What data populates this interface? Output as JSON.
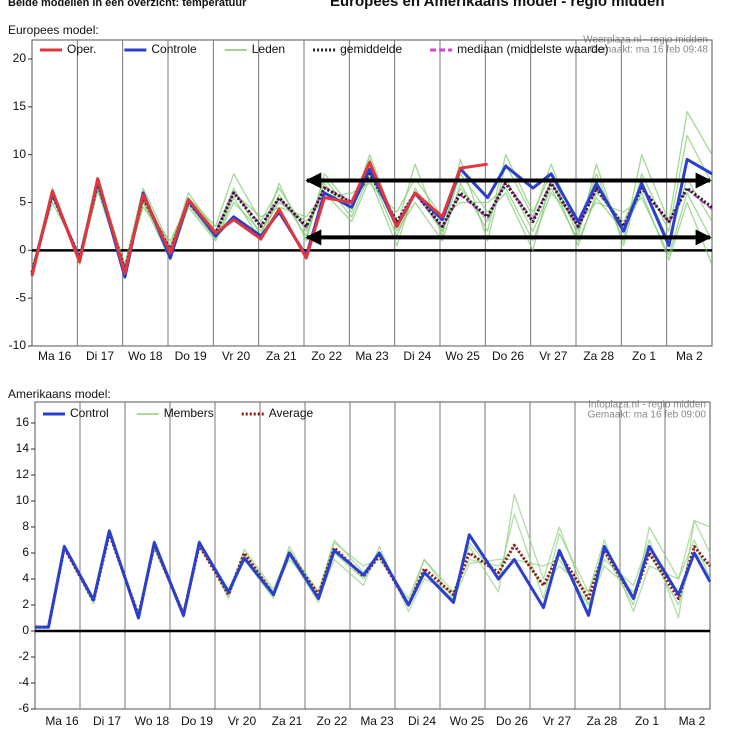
{
  "header": {
    "left": "Beide modellen in een overzicht: temperatuur",
    "title": "Europees en Amerikaans model - regio midden"
  },
  "chart_data": [
    {
      "type": "line",
      "label": "Europees model:",
      "source": [
        "Weerplaza.nl - regio midden",
        "Gemaakt: ma 16 feb 09:48"
      ],
      "x": [
        0,
        0.45,
        1.05,
        1.45,
        2.05,
        2.45,
        3.05,
        3.45,
        4.05,
        4.45,
        5.05,
        5.45,
        6.05,
        6.45,
        7.05,
        7.45,
        8.05,
        8.45,
        9.05,
        9.45,
        10.05,
        10.45,
        11.05,
        11.45,
        12.05,
        12.45,
        13.05,
        13.45,
        14.05,
        14.45,
        15
      ],
      "xlim": [
        0,
        15
      ],
      "xticks": [
        {
          "value": 0.5,
          "label": "Ma 16"
        },
        {
          "value": 1.5,
          "label": "Di 17"
        },
        {
          "value": 2.5,
          "label": "Wo 18"
        },
        {
          "value": 3.5,
          "label": "Do 19"
        },
        {
          "value": 4.5,
          "label": "Vr 20"
        },
        {
          "value": 5.5,
          "label": "Za 21"
        },
        {
          "value": 6.5,
          "label": "Zo 22"
        },
        {
          "value": 7.5,
          "label": "Ma 23"
        },
        {
          "value": 8.5,
          "label": "Di 24"
        },
        {
          "value": 9.5,
          "label": "Wo 25"
        },
        {
          "value": 10.5,
          "label": "Do 26"
        },
        {
          "value": 11.5,
          "label": "Vr 27"
        },
        {
          "value": 12.5,
          "label": "Za 28"
        },
        {
          "value": 13.5,
          "label": "Zo 1"
        },
        {
          "value": 14.5,
          "label": "Ma 2"
        }
      ],
      "vgrid": [
        1,
        2,
        3,
        4,
        5,
        6,
        7,
        8,
        9,
        10,
        11,
        12,
        13,
        14
      ],
      "ylim": [
        -10,
        20
      ],
      "yticks": [
        -10,
        -5,
        0,
        5,
        10,
        15,
        20
      ],
      "zero_line": true,
      "series": [
        {
          "name": "Oper.",
          "color": "#e0363c",
          "width": 3,
          "values": [
            -2.7,
            6.2,
            -1.2,
            7.5,
            -2.4,
            5.8,
            -0.3,
            5.3,
            1.8,
            3.2,
            1.2,
            4.3,
            -0.8,
            5.5,
            5,
            9.2,
            2.5,
            6,
            3.5,
            8.6,
            9,
            null,
            null,
            null,
            null,
            null,
            null,
            null,
            null,
            null,
            null
          ]
        },
        {
          "name": "Controle",
          "color": "#2b3fcf",
          "width": 3,
          "values": [
            -2.5,
            6,
            -1,
            7.3,
            -2.8,
            6,
            -0.8,
            5.2,
            1.5,
            3.5,
            1.5,
            4,
            -0.6,
            6,
            4.5,
            8.5,
            2.5,
            6,
            3.2,
            8.5,
            5.5,
            8.8,
            6.5,
            8,
            3,
            7,
            2,
            7,
            0.5,
            9.5,
            8
          ]
        },
        {
          "name": "Leden",
          "color": "#7cc96a",
          "width": 1.3,
          "members": [
            [
              -2,
              5.5,
              -0.5,
              7.5,
              -1.5,
              6.5,
              0.5,
              5.5,
              2.5,
              8,
              3,
              6.5,
              2,
              7.5,
              4,
              9.5,
              2,
              5,
              1,
              7,
              2,
              10,
              4,
              8,
              1.5,
              9,
              0.5,
              8,
              2,
              12,
              7
            ],
            [
              -2.5,
              6,
              -1.5,
              6.5,
              -2.5,
              5,
              -1,
              4.5,
              1,
              5,
              2,
              5,
              3,
              5.5,
              6,
              7,
              4,
              7.5,
              3.5,
              5,
              5,
              6.5,
              1,
              6,
              3,
              5,
              4,
              5.5,
              -0.5,
              6,
              1
            ],
            [
              -2,
              6.5,
              -1,
              7,
              -2,
              6,
              0,
              6,
              2,
              6.5,
              1.5,
              7,
              1,
              8,
              4.5,
              10,
              2.5,
              9,
              1.5,
              9.5,
              1,
              9,
              3.5,
              9,
              2,
              8,
              1,
              10,
              3,
              14.5,
              10
            ],
            [
              -2.3,
              5,
              -0.5,
              6.8,
              -1.8,
              4.5,
              1,
              5,
              1.5,
              6,
              3.5,
              4.5,
              3.5,
              6,
              3,
              7.5,
              0.5,
              6.5,
              2,
              8,
              4,
              6,
              0,
              7.5,
              0.5,
              6,
              3,
              7,
              1,
              7.5,
              3
            ],
            [
              -2.6,
              5.8,
              -1.2,
              6.2,
              -2.2,
              5.2,
              -0.5,
              4.8,
              1.2,
              5.5,
              1,
              5.8,
              1.5,
              7,
              3.5,
              8,
              1.5,
              6,
              2,
              6.5,
              3,
              7.5,
              2,
              6.5,
              1,
              5.5,
              2,
              6,
              -1,
              5,
              -1.5
            ]
          ]
        },
        {
          "name": "gemiddelde",
          "color": "#222222",
          "width": 3,
          "dash": "2,2",
          "values": [
            -2.3,
            5.8,
            -0.8,
            7,
            -2,
            5.5,
            0,
            5,
            1.8,
            6,
            2.5,
            5.5,
            2.5,
            6.5,
            5,
            8,
            3,
            6,
            2.5,
            6,
            3.5,
            7,
            3,
            7,
            2.5,
            6.5,
            2.5,
            6.5,
            3,
            6.5,
            4.5
          ]
        },
        {
          "name": "mediaan (middelste waarde)",
          "color": "#d43fd4",
          "width": 2,
          "dash": "6,3",
          "values": [
            -2.3,
            5.9,
            -0.8,
            7.1,
            -2,
            5.5,
            0.1,
            5.1,
            1.9,
            6.1,
            2.6,
            5.4,
            2.4,
            6.6,
            5.1,
            8.1,
            3,
            5.9,
            2.4,
            5.8,
            3.4,
            7.2,
            3.1,
            7.1,
            2.4,
            6.4,
            2.6,
            6.6,
            2.9,
            6.4,
            4.3
          ]
        }
      ],
      "arrows": [
        {
          "x": [
            6.02,
            15
          ],
          "y": 7.3
        },
        {
          "x": [
            6.02,
            15
          ],
          "y": 1.35
        }
      ]
    },
    {
      "type": "line",
      "label": "Amerikaans model:",
      "source": [
        "Infoplaza.nl - regio midden",
        "Gemaakt: ma 16 feb 09:00"
      ],
      "x": [
        0,
        0.3,
        0.65,
        1.3,
        1.65,
        2.3,
        2.65,
        3.3,
        3.65,
        4.3,
        4.65,
        5.3,
        5.65,
        6.3,
        6.65,
        7.3,
        7.65,
        8.3,
        8.65,
        9.3,
        9.65,
        10.3,
        10.65,
        11.3,
        11.65,
        12.3,
        12.65,
        13.3,
        13.65,
        14.3,
        14.65,
        15
      ],
      "xlim": [
        0,
        15
      ],
      "xticks": [
        {
          "value": 0.6,
          "label": "Ma 16"
        },
        {
          "value": 1.6,
          "label": "Di 17"
        },
        {
          "value": 2.6,
          "label": "Wo 18"
        },
        {
          "value": 3.6,
          "label": "Do 19"
        },
        {
          "value": 4.6,
          "label": "Vr 20"
        },
        {
          "value": 5.6,
          "label": "Za 21"
        },
        {
          "value": 6.6,
          "label": "Zo 22"
        },
        {
          "value": 7.6,
          "label": "Ma 23"
        },
        {
          "value": 8.6,
          "label": "Di 24"
        },
        {
          "value": 9.6,
          "label": "Wo 25"
        },
        {
          "value": 10.6,
          "label": "Do 26"
        },
        {
          "value": 11.6,
          "label": "Vr 27"
        },
        {
          "value": 12.6,
          "label": "Za 28"
        },
        {
          "value": 13.6,
          "label": "Zo 1"
        },
        {
          "value": 14.6,
          "label": "Ma 2"
        }
      ],
      "vgrid": [
        1,
        2,
        3,
        4,
        5,
        6,
        7,
        8,
        9,
        10,
        11,
        12,
        13,
        14
      ],
      "ylim": [
        -6,
        16
      ],
      "yticks": [
        -6,
        -4,
        -2,
        0,
        2,
        4,
        6,
        8,
        10,
        12,
        14,
        16
      ],
      "zero_line": true,
      "series": [
        {
          "name": "Control",
          "color": "#2b3fcf",
          "width": 3,
          "values": [
            0.3,
            0.3,
            6.5,
            2.4,
            7.7,
            1.0,
            6.8,
            1.2,
            6.8,
            3.0,
            5.6,
            2.8,
            6.0,
            2.5,
            6.2,
            4.3,
            6.0,
            2.0,
            4.5,
            2.2,
            7.4,
            4.0,
            5.5,
            1.8,
            6.2,
            1.2,
            6.5,
            2.5,
            6.5,
            2.8,
            6.0,
            3.8
          ]
        },
        {
          "name": "Members",
          "color": "#8fd07e",
          "width": 1.3,
          "members": [
            [
              0.3,
              0.3,
              6.6,
              2.2,
              7.8,
              1.2,
              6.5,
              1,
              7,
              2.5,
              6,
              3,
              5.5,
              3,
              7,
              4.5,
              6,
              2,
              5.5,
              3,
              6.5,
              3,
              10.5,
              4,
              8,
              2,
              5.5,
              3.5,
              7,
              1,
              8.5,
              6
            ],
            [
              0.3,
              0.4,
              6.3,
              2.5,
              7.4,
              1.4,
              6.6,
              1.5,
              6.4,
              3,
              5.5,
              2.5,
              6.5,
              2.5,
              5.5,
              3.5,
              6.5,
              1.5,
              4,
              3,
              5.5,
              5,
              6.5,
              3.5,
              5,
              3,
              7,
              1.5,
              5,
              4,
              7,
              4
            ],
            [
              0.3,
              0.3,
              6.5,
              2.1,
              7.6,
              1,
              7,
              1.2,
              6.9,
              2.7,
              6.3,
              3.2,
              6.2,
              3,
              6.8,
              5,
              5.5,
              2.5,
              5.5,
              2.5,
              6.8,
              4,
              9,
              2.5,
              7.5,
              3,
              6,
              2,
              8,
              4,
              8.5,
              8
            ],
            [
              0.3,
              0.2,
              6.4,
              2.3,
              7.5,
              1.3,
              6.3,
              1.4,
              6.5,
              3.2,
              5.8,
              2.7,
              5.8,
              2.2,
              6,
              4,
              5.8,
              2.2,
              4.6,
              2.4,
              5.2,
              5.5,
              5.5,
              5,
              5.5,
              2,
              5,
              3,
              6,
              2,
              6,
              5
            ]
          ]
        },
        {
          "name": "Average",
          "color": "#8b1a1a",
          "width": 3,
          "dash": "2,2",
          "values": [
            0.3,
            0.3,
            6.4,
            2.3,
            7.5,
            1.2,
            6.6,
            1.3,
            6.6,
            2.8,
            6,
            2.8,
            6,
            2.8,
            6.4,
            4.2,
            5.8,
            2,
            4.8,
            2.8,
            6,
            4.5,
            6.6,
            3.5,
            6,
            2.5,
            6.2,
            2.5,
            6,
            2.5,
            6.5,
            5
          ]
        }
      ]
    }
  ]
}
